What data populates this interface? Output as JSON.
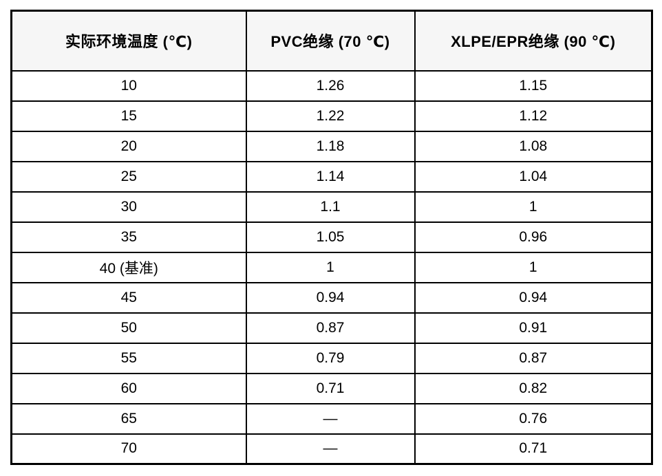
{
  "table": {
    "title": "ambient-temperature-correction-factors",
    "headers": [
      "实际环境温度 (℃)",
      "PVC绝缘 (70 ℃)",
      "XLPE/EPR绝缘 (90 ℃)"
    ],
    "rows": [
      [
        "10",
        "1.26",
        "1.15"
      ],
      [
        "15",
        "1.22",
        "1.12"
      ],
      [
        "20",
        "1.18",
        "1.08"
      ],
      [
        "25",
        "1.14",
        "1.04"
      ],
      [
        "30",
        "1.1",
        "1"
      ],
      [
        "35",
        "1.05",
        "0.96"
      ],
      [
        "40 (基准)",
        "1",
        "1"
      ],
      [
        "45",
        "0.94",
        "0.94"
      ],
      [
        "50",
        "0.87",
        "0.91"
      ],
      [
        "55",
        "0.79",
        "0.87"
      ],
      [
        "60",
        "0.71",
        "0.82"
      ],
      [
        "65",
        "—",
        "0.76"
      ],
      [
        "70",
        "—",
        "0.71"
      ]
    ],
    "colors": {
      "border": "#000000",
      "header_bg": "#f6f6f6",
      "text": "#000000",
      "background": "#ffffff"
    }
  }
}
